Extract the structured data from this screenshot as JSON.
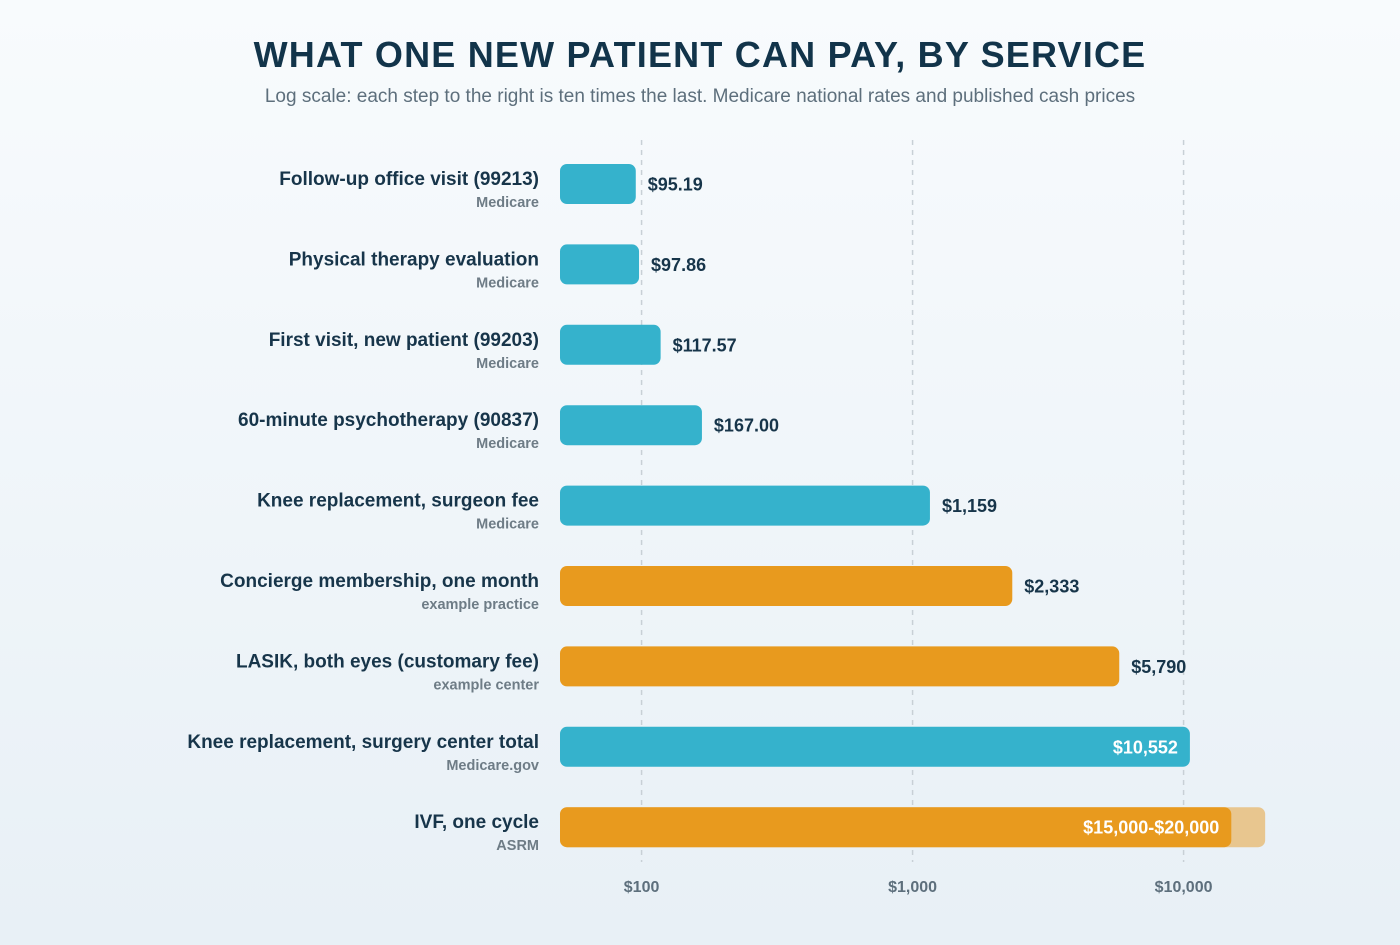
{
  "title": "WHAT ONE NEW PATIENT CAN PAY, BY SERVICE",
  "subtitle": "Log scale: each step to the right is ten times the last. Medicare national rates and published cash prices",
  "colors": {
    "medicare": "#35b2cc",
    "cash": "#e89a1e",
    "range_extension": "#e8c68f",
    "grid": "#c8d0d6"
  },
  "chart_data": {
    "type": "bar",
    "orientation": "horizontal",
    "x_scale": "log",
    "xlim": [
      50,
      20000
    ],
    "x_ticks": [
      100,
      1000,
      10000
    ],
    "x_tick_labels": [
      "$100",
      "$1,000",
      "$10,000"
    ],
    "grid": "vertical dashed at ticks",
    "rows": [
      {
        "label": "Follow-up office visit (99213)",
        "source": "Medicare",
        "value": 95.19,
        "value_label": "$95.19",
        "group": "medicare"
      },
      {
        "label": "Physical therapy evaluation",
        "source": "Medicare",
        "value": 97.86,
        "value_label": "$97.86",
        "group": "medicare"
      },
      {
        "label": "First visit, new patient (99203)",
        "source": "Medicare",
        "value": 117.57,
        "value_label": "$117.57",
        "group": "medicare"
      },
      {
        "label": "60-minute psychotherapy (90837)",
        "source": "Medicare",
        "value": 167.0,
        "value_label": "$167.00",
        "group": "medicare"
      },
      {
        "label": "Knee replacement, surgeon fee",
        "source": "Medicare",
        "value": 1159,
        "value_label": "$1,159",
        "group": "medicare"
      },
      {
        "label": "Concierge membership, one month",
        "source": "example practice",
        "value": 2333,
        "value_label": "$2,333",
        "group": "cash"
      },
      {
        "label": "LASIK, both eyes (customary fee)",
        "source": "example center",
        "value": 5790,
        "value_label": "$5,790",
        "group": "cash"
      },
      {
        "label": "Knee replacement, surgery center total",
        "source": "Medicare.gov",
        "value": 10552,
        "value_label": "$10,552",
        "group": "medicare"
      },
      {
        "label": "IVF, one cycle",
        "source": "ASRM",
        "value": 15000,
        "value_high": 20000,
        "value_label": "$15,000-$20,000",
        "group": "cash"
      }
    ]
  }
}
